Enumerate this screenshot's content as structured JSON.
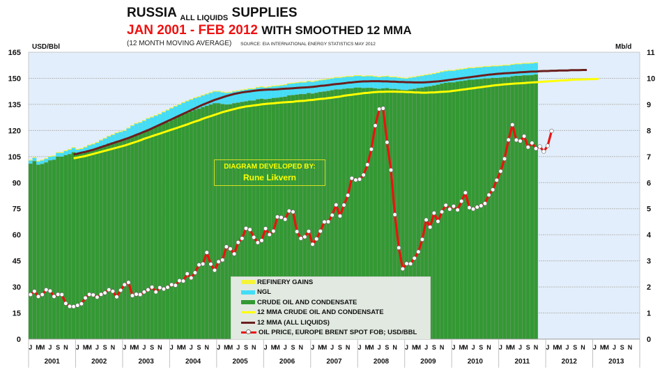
{
  "title": {
    "line1_main": "RUSSIA",
    "line1_sub": "ALL LIQUIDS",
    "line1_end": "SUPPLIES",
    "line2_red": "JAN 2001 - FEB 2012",
    "line2_black": "WITH SMOOTHED 12 MMA",
    "line3": "(12 MONTH MOVING AVERAGE)",
    "source": "SOURCE: EIA INTERNATIONAL ENERGY STATISTICS   MAY 2012"
  },
  "credit": {
    "line1": "DIAGRAM DEVELOPED BY:",
    "line2": "Rune Likvern"
  },
  "colors": {
    "plot_bg": "#e2eefb",
    "crude": "#339933",
    "ngl": "#44ddf7",
    "refinery": "#f5f536",
    "mma_crude": "#ffff00",
    "mma_all": "#6b1e1e",
    "price": "#ee1111"
  },
  "chart_data": {
    "type": "bar",
    "title": "RUSSIA ALL LIQUIDS SUPPLIES JAN 2001 - FEB 2012 WITH SMOOTHED 12 MMA",
    "ylabel_left": "USD/Bbl",
    "ylabel_right": "Mb/d",
    "ylim_left": [
      0,
      165
    ],
    "yticks_left": [
      0,
      15,
      30,
      45,
      60,
      75,
      90,
      105,
      120,
      135,
      150,
      165
    ],
    "ylim_right": [
      0,
      11
    ],
    "yticks_right": [
      0,
      1,
      2,
      3,
      4,
      5,
      6,
      7,
      8,
      9,
      10,
      11
    ],
    "x_years": [
      "2001",
      "2002",
      "2003",
      "2004",
      "2005",
      "2006",
      "2007",
      "2008",
      "2009",
      "2010",
      "2011",
      "2012",
      "2013"
    ],
    "month_ticks": [
      "J",
      "",
      "M",
      "M",
      "",
      "J",
      "",
      "S",
      "",
      "N",
      "",
      ""
    ],
    "grid": true,
    "legend_position": "bottom-center",
    "legend": [
      {
        "label": "REFINERY GAINS",
        "kind": "bar",
        "color": "#f5f536"
      },
      {
        "label": "NGL",
        "kind": "bar",
        "color": "#44ddf7"
      },
      {
        "label": "CRUDE  OIL AND CONDENSATE",
        "kind": "bar",
        "color": "#339933"
      },
      {
        "label": "12 MMA CRUDE  OIL AND CONDENSATE",
        "kind": "line",
        "color": "#ffff00"
      },
      {
        "label": "12 MMA (ALL LIQUIDS)",
        "kind": "line",
        "color": "#6b1e1e"
      },
      {
        "label": "OIL PRICE, EUROPE BRENT SPOT FOB; USD/BBL",
        "kind": "line-marker",
        "color": "#ee1111"
      }
    ],
    "series": [
      {
        "name": "CRUDE OIL AND CONDENSATE",
        "unit": "Mb/d",
        "axis": "right",
        "values": [
          6.73,
          6.83,
          6.69,
          6.72,
          6.78,
          6.86,
          6.88,
          7.0,
          7.0,
          7.06,
          7.1,
          7.17,
          7.1,
          7.12,
          7.18,
          7.25,
          7.29,
          7.33,
          7.4,
          7.45,
          7.51,
          7.55,
          7.6,
          7.62,
          7.65,
          7.72,
          7.8,
          7.86,
          7.9,
          7.97,
          8.05,
          8.1,
          8.16,
          8.22,
          8.28,
          8.32,
          8.4,
          8.48,
          8.55,
          8.62,
          8.68,
          8.74,
          8.8,
          8.84,
          8.9,
          8.95,
          9.0,
          9.05,
          9.05,
          9.02,
          9.0,
          9.01,
          9.05,
          9.07,
          9.1,
          9.12,
          9.15,
          9.15,
          9.2,
          9.22,
          9.2,
          9.22,
          9.25,
          9.26,
          9.28,
          9.3,
          9.35,
          9.36,
          9.38,
          9.4,
          9.4,
          9.44,
          9.42,
          9.45,
          9.48,
          9.5,
          9.52,
          9.55,
          9.58,
          9.58,
          9.6,
          9.62,
          9.62,
          9.65,
          9.65,
          9.63,
          9.64,
          9.64,
          9.62,
          9.6,
          9.62,
          9.63,
          9.6,
          9.6,
          9.58,
          9.56,
          9.55,
          9.58,
          9.6,
          9.63,
          9.65,
          9.68,
          9.7,
          9.73,
          9.76,
          9.8,
          9.83,
          9.85,
          9.85,
          9.88,
          9.9,
          9.92,
          9.95,
          9.95,
          9.97,
          9.98,
          10.0,
          10.0,
          10.02,
          10.02,
          10.03,
          10.05,
          10.05,
          10.08,
          10.1,
          10.1,
          10.12,
          10.12,
          10.13,
          10.15
        ]
      },
      {
        "name": "NGL",
        "unit": "Mb/d",
        "axis": "right",
        "values": [
          0.12,
          0.12,
          0.12,
          0.13,
          0.13,
          0.13,
          0.13,
          0.14,
          0.14,
          0.15,
          0.16,
          0.16,
          0.16,
          0.17,
          0.17,
          0.18,
          0.18,
          0.2,
          0.22,
          0.24,
          0.26,
          0.28,
          0.3,
          0.32,
          0.34,
          0.36,
          0.38,
          0.4,
          0.4,
          0.4,
          0.4,
          0.4,
          0.4,
          0.4,
          0.42,
          0.45,
          0.45,
          0.44,
          0.44,
          0.44,
          0.44,
          0.44,
          0.44,
          0.44,
          0.44,
          0.44,
          0.44,
          0.44,
          0.44,
          0.44,
          0.44,
          0.44,
          0.44,
          0.44,
          0.44,
          0.44,
          0.44,
          0.44,
          0.44,
          0.44,
          0.44,
          0.44,
          0.44,
          0.44,
          0.44,
          0.44,
          0.44,
          0.44,
          0.44,
          0.44,
          0.44,
          0.44,
          0.44,
          0.44,
          0.44,
          0.44,
          0.44,
          0.44,
          0.44,
          0.44,
          0.44,
          0.44,
          0.44,
          0.44,
          0.44,
          0.44,
          0.44,
          0.44,
          0.44,
          0.44,
          0.44,
          0.44,
          0.44,
          0.44,
          0.44,
          0.44,
          0.44,
          0.44,
          0.44,
          0.44,
          0.44,
          0.44,
          0.44,
          0.44,
          0.44,
          0.44,
          0.44,
          0.44,
          0.44,
          0.44,
          0.44,
          0.44,
          0.44,
          0.44,
          0.44,
          0.44,
          0.44,
          0.44,
          0.44,
          0.44,
          0.44,
          0.44,
          0.44,
          0.44,
          0.44,
          0.44,
          0.44,
          0.44,
          0.44,
          0.44,
          0.44,
          0.44,
          0.44,
          0.44
        ]
      },
      {
        "name": "REFINERY GAINS",
        "unit": "Mb/d",
        "axis": "right",
        "value_constant": 0.03
      },
      {
        "name": "12 MMA CRUDE OIL AND CONDENSATE",
        "unit": "Mb/d",
        "axis": "right",
        "start_index": 11,
        "values": [
          6.93,
          6.96,
          6.99,
          7.02,
          7.06,
          7.1,
          7.14,
          7.18,
          7.22,
          7.26,
          7.3,
          7.34,
          7.38,
          7.42,
          7.47,
          7.52,
          7.57,
          7.62,
          7.68,
          7.73,
          7.78,
          7.83,
          7.88,
          7.93,
          7.98,
          8.03,
          8.08,
          8.13,
          8.18,
          8.23,
          8.29,
          8.34,
          8.39,
          8.45,
          8.5,
          8.55,
          8.6,
          8.65,
          8.7,
          8.74,
          8.78,
          8.82,
          8.86,
          8.89,
          8.92,
          8.94,
          8.96,
          8.98,
          9.0,
          9.02,
          9.03,
          9.04,
          9.06,
          9.07,
          9.08,
          9.09,
          9.1,
          9.12,
          9.13,
          9.14,
          9.16,
          9.17,
          9.19,
          9.21,
          9.22,
          9.24,
          9.26,
          9.28,
          9.3,
          9.33,
          9.35,
          9.37,
          9.39,
          9.41,
          9.43,
          9.44,
          9.46,
          9.47,
          9.48,
          9.48,
          9.49,
          9.49,
          9.49,
          9.48,
          9.48,
          9.47,
          9.47,
          9.46,
          9.46,
          9.45,
          9.45,
          9.46,
          9.46,
          9.47,
          9.48,
          9.49,
          9.5,
          9.52,
          9.54,
          9.56,
          9.58,
          9.6,
          9.62,
          9.64,
          9.66,
          9.68,
          9.7,
          9.72,
          9.74,
          9.75,
          9.77,
          9.78,
          9.79,
          9.8,
          9.81,
          9.82,
          9.83,
          9.84,
          9.85,
          9.86,
          9.87,
          9.88,
          9.89,
          9.9,
          9.91,
          9.92,
          9.93,
          9.94,
          9.95,
          9.95,
          9.96,
          9.96,
          9.97,
          9.97,
          9.98
        ]
      },
      {
        "name": "12 MMA (ALL LIQUIDS)",
        "unit": "Mb/d",
        "axis": "right",
        "start_index": 11,
        "values": [
          7.08,
          7.11,
          7.15,
          7.18,
          7.22,
          7.26,
          7.31,
          7.36,
          7.41,
          7.46,
          7.51,
          7.56,
          7.61,
          7.66,
          7.71,
          7.77,
          7.83,
          7.89,
          7.95,
          8.01,
          8.08,
          8.15,
          8.22,
          8.29,
          8.36,
          8.43,
          8.5,
          8.57,
          8.64,
          8.71,
          8.78,
          8.85,
          8.92,
          8.99,
          9.05,
          9.11,
          9.17,
          9.22,
          9.27,
          9.32,
          9.36,
          9.4,
          9.43,
          9.46,
          9.48,
          9.5,
          9.52,
          9.54,
          9.55,
          9.56,
          9.57,
          9.57,
          9.58,
          9.59,
          9.6,
          9.61,
          9.62,
          9.63,
          9.64,
          9.65,
          9.66,
          9.67,
          9.69,
          9.71,
          9.72,
          9.74,
          9.76,
          9.78,
          9.79,
          9.81,
          9.83,
          9.84,
          9.86,
          9.87,
          9.88,
          9.88,
          9.89,
          9.89,
          9.89,
          9.88,
          9.88,
          9.87,
          9.87,
          9.86,
          9.86,
          9.85,
          9.85,
          9.84,
          9.84,
          9.84,
          9.85,
          9.86,
          9.87,
          9.88,
          9.9,
          9.92,
          9.94,
          9.96,
          9.98,
          10.0,
          10.02,
          10.04,
          10.06,
          10.08,
          10.1,
          10.12,
          10.14,
          10.15,
          10.17,
          10.18,
          10.19,
          10.2,
          10.21,
          10.22,
          10.23,
          10.24,
          10.25,
          10.26,
          10.26,
          10.27,
          10.28,
          10.28,
          10.29,
          10.29,
          10.3,
          10.3,
          10.3,
          10.31,
          10.31,
          10.31,
          10.32,
          10.32
        ]
      },
      {
        "name": "OIL PRICE, EUROPE BRENT SPOT FOB; USD/BBL",
        "unit": "USD/Bbl",
        "axis": "left",
        "values": [
          25.6,
          27.5,
          24.5,
          25.6,
          28.4,
          27.7,
          24.5,
          25.7,
          25.6,
          20.5,
          18.8,
          18.7,
          19.4,
          20.3,
          23.7,
          25.7,
          25.4,
          24.1,
          25.7,
          26.6,
          28.4,
          27.5,
          24.3,
          28.1,
          31.3,
          32.6,
          25.0,
          25.8,
          25.6,
          27.1,
          28.4,
          29.9,
          27.1,
          29.6,
          28.8,
          29.8,
          31.3,
          30.9,
          33.6,
          33.4,
          37.6,
          35.2,
          38.2,
          42.7,
          43.2,
          49.8,
          43.1,
          39.6,
          44.5,
          45.5,
          53.1,
          51.9,
          49.0,
          55.6,
          57.9,
          63.7,
          63.0,
          58.5,
          55.5,
          56.7,
          63.6,
          60.1,
          62.1,
          70.3,
          70.0,
          68.9,
          73.7,
          73.2,
          61.8,
          57.9,
          58.8,
          62.0,
          54.5,
          57.6,
          62.1,
          67.4,
          67.5,
          71.3,
          77.2,
          70.8,
          77.1,
          82.7,
          92.5,
          91.5,
          91.9,
          94.4,
          100.3,
          109.2,
          122.8,
          132.3,
          132.7,
          113.2,
          97.2,
          71.6,
          52.5,
          40.4,
          43.4,
          43.3,
          46.5,
          50.2,
          57.3,
          68.6,
          64.4,
          72.5,
          67.7,
          73.2,
          77.0,
          74.7,
          76.4,
          74.3,
          79.3,
          84.2,
          75.6,
          74.8,
          75.9,
          76.7,
          78.0,
          82.9,
          85.9,
          91.4,
          96.5,
          103.7,
          114.6,
          123.3,
          114.5,
          113.9,
          116.7,
          110.4,
          112.8,
          109.6,
          110.8,
          107.9,
          111.2,
          119.7
        ]
      }
    ]
  }
}
